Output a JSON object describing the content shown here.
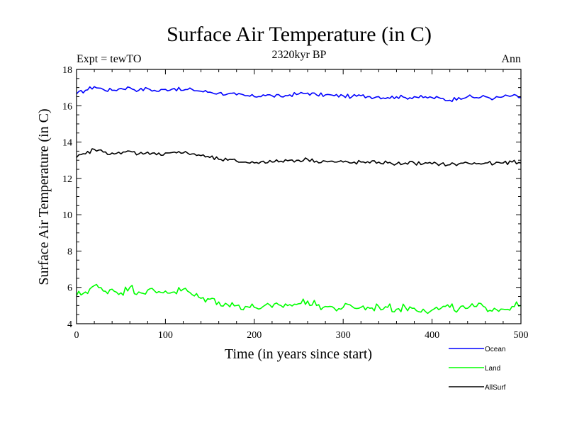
{
  "chart_data": {
    "type": "line",
    "title": "Surface Air Temperature (in C)",
    "subtitle": "2320kyr BP",
    "left_label": "Expt = tewTO",
    "right_label": "Ann",
    "xlabel": "Time (in years since start)",
    "ylabel": "Surface Air Temperature (in C)",
    "xlim": [
      0,
      500
    ],
    "ylim": [
      4,
      18
    ],
    "xticks": [
      0,
      100,
      200,
      300,
      400,
      500
    ],
    "yticks": [
      4,
      6,
      8,
      10,
      12,
      14,
      16,
      18
    ],
    "grid": false,
    "legend_position": "bottom-right",
    "series": [
      {
        "name": "Ocean",
        "color": "#0000ff",
        "x": [
          0,
          10,
          20,
          30,
          40,
          50,
          60,
          70,
          80,
          90,
          100,
          110,
          120,
          130,
          140,
          150,
          160,
          170,
          180,
          190,
          200,
          210,
          220,
          230,
          240,
          250,
          260,
          270,
          280,
          290,
          300,
          310,
          320,
          330,
          340,
          350,
          360,
          370,
          380,
          390,
          400,
          410,
          420,
          430,
          440,
          450,
          460,
          470,
          480,
          490,
          500
        ],
        "values": [
          16.65,
          16.85,
          17.05,
          16.9,
          16.85,
          16.95,
          17.0,
          16.85,
          16.95,
          16.8,
          16.9,
          16.95,
          16.85,
          16.9,
          16.8,
          16.75,
          16.7,
          16.65,
          16.6,
          16.55,
          16.5,
          16.6,
          16.55,
          16.5,
          16.6,
          16.65,
          16.7,
          16.6,
          16.6,
          16.55,
          16.55,
          16.5,
          16.55,
          16.5,
          16.5,
          16.45,
          16.5,
          16.45,
          16.5,
          16.45,
          16.45,
          16.4,
          16.3,
          16.45,
          16.5,
          16.45,
          16.5,
          16.4,
          16.5,
          16.55,
          16.45
        ]
      },
      {
        "name": "Land",
        "color": "#00ff00",
        "x": [
          0,
          10,
          20,
          30,
          40,
          50,
          60,
          70,
          80,
          90,
          100,
          110,
          120,
          130,
          140,
          150,
          160,
          170,
          180,
          190,
          200,
          210,
          220,
          230,
          240,
          250,
          260,
          270,
          280,
          290,
          300,
          310,
          320,
          330,
          340,
          350,
          360,
          370,
          380,
          390,
          400,
          410,
          420,
          430,
          440,
          450,
          460,
          470,
          480,
          490,
          500
        ],
        "values": [
          5.55,
          5.75,
          6.1,
          5.8,
          5.9,
          5.7,
          6.0,
          5.75,
          5.85,
          5.7,
          5.8,
          5.75,
          5.9,
          5.6,
          5.4,
          5.35,
          5.2,
          5.05,
          5.0,
          4.95,
          4.9,
          4.95,
          4.9,
          5.0,
          5.05,
          5.1,
          5.25,
          5.0,
          4.95,
          4.85,
          4.9,
          4.95,
          4.9,
          4.85,
          4.95,
          4.9,
          4.8,
          4.9,
          4.85,
          4.8,
          4.75,
          4.85,
          4.9,
          4.8,
          4.85,
          4.95,
          4.9,
          4.85,
          4.8,
          4.95,
          5.0
        ]
      },
      {
        "name": "AllSurf",
        "color": "#000000",
        "x": [
          0,
          10,
          20,
          30,
          40,
          50,
          60,
          70,
          80,
          90,
          100,
          110,
          120,
          130,
          140,
          150,
          160,
          170,
          180,
          190,
          200,
          210,
          220,
          230,
          240,
          250,
          260,
          270,
          280,
          290,
          300,
          310,
          320,
          330,
          340,
          350,
          360,
          370,
          380,
          390,
          400,
          410,
          420,
          430,
          440,
          450,
          460,
          470,
          480,
          490,
          500
        ],
        "values": [
          13.15,
          13.35,
          13.6,
          13.45,
          13.4,
          13.35,
          13.5,
          13.35,
          13.45,
          13.3,
          13.4,
          13.45,
          13.4,
          13.35,
          13.25,
          13.15,
          13.05,
          13.0,
          12.95,
          12.9,
          12.85,
          12.95,
          12.9,
          12.95,
          13.0,
          13.0,
          13.05,
          12.95,
          12.95,
          12.9,
          12.9,
          12.85,
          12.9,
          12.85,
          12.9,
          12.85,
          12.8,
          12.85,
          12.85,
          12.8,
          12.8,
          12.8,
          12.75,
          12.8,
          12.85,
          12.8,
          12.85,
          12.8,
          12.85,
          12.9,
          12.85
        ]
      }
    ]
  }
}
